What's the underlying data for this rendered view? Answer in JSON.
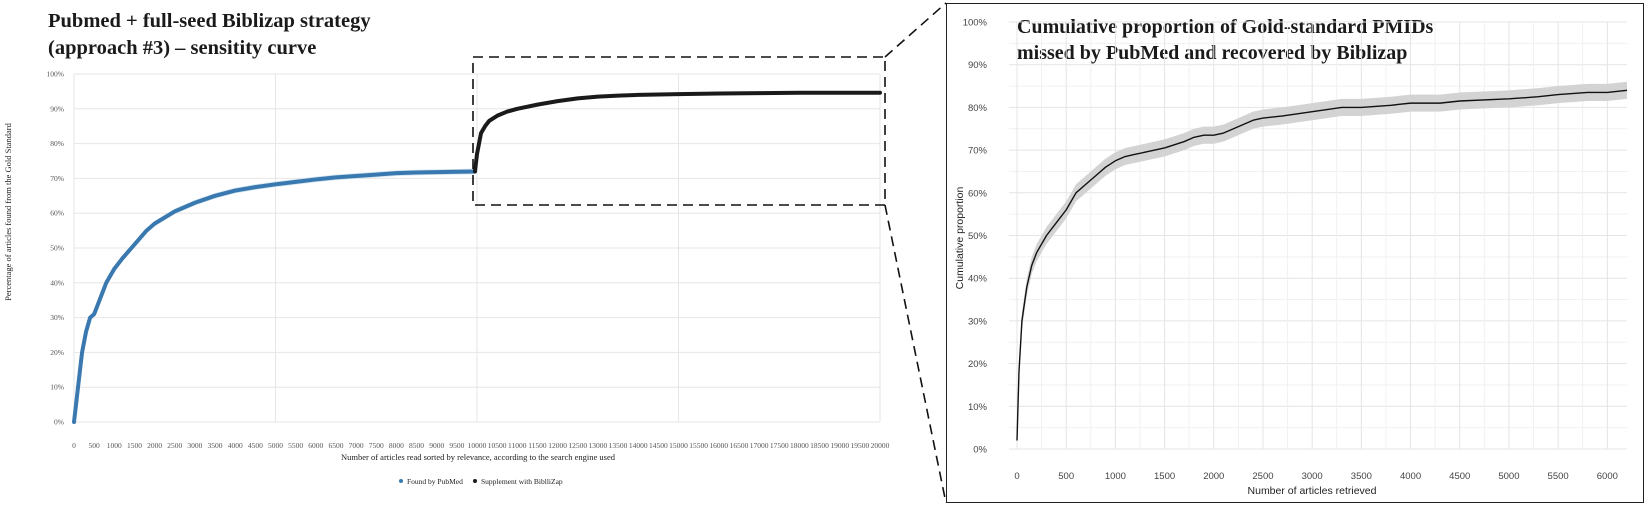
{
  "title": {
    "line1": "Pubmed + full-seed Biblizap strategy",
    "line2": "(approach #3) – sensitity curve"
  },
  "inset": {
    "title_line1": "Cumulative proportion of Gold-standard PMIDs",
    "title_line2": "missed by PubMed and recovered by Biblizap"
  },
  "colors": {
    "pubmed": "#3a78b0",
    "pubmed_band": "#cfe4f0",
    "biblizap": "#1a1a1a",
    "ci_band": "#d3d3d3",
    "grid": "#e6e6e6"
  },
  "chart_data": [
    {
      "type": "line",
      "title": "Pubmed + full-seed Biblizap strategy (approach #3) – sensitity curve",
      "xlabel": "Number of articles read sorted by relevance, according to the search engine used",
      "ylabel": "Percentage of articles found from the Gold Standard",
      "xlim": [
        0,
        20000
      ],
      "ylim": [
        0,
        1
      ],
      "x_ticks": [
        "0",
        "500",
        "1000",
        "1500",
        "2000",
        "2500",
        "3000",
        "3500",
        "4000",
        "4500",
        "5000",
        "5500",
        "6000",
        "6500",
        "7000",
        "7500",
        "8000",
        "8500",
        "9000",
        "9500",
        "10000",
        "10500",
        "11000",
        "11500",
        "12000",
        "12500",
        "13000",
        "13500",
        "14000",
        "14500",
        "15000",
        "15500",
        "16000",
        "16500",
        "17000",
        "17500",
        "18000",
        "18500",
        "19000",
        "19500",
        "20000"
      ],
      "y_ticks": [
        "0%",
        "10%",
        "20%",
        "30%",
        "40%",
        "50%",
        "60%",
        "70%",
        "80%",
        "90%",
        "100%"
      ],
      "legend": {
        "placement": "bottom",
        "entries": [
          "Found by PubMed",
          "Supplement with BiblliZap"
        ]
      },
      "grid": true,
      "series": [
        {
          "name": "Found by PubMed",
          "x": [
            0,
            50,
            100,
            200,
            300,
            400,
            500,
            600,
            700,
            800,
            1000,
            1200,
            1500,
            1800,
            2000,
            2500,
            3000,
            3500,
            4000,
            4500,
            5000,
            5500,
            6000,
            6500,
            7000,
            7500,
            8000,
            8500,
            9000,
            9500,
            9950
          ],
          "y": [
            0.0,
            0.05,
            0.1,
            0.2,
            0.26,
            0.3,
            0.31,
            0.34,
            0.37,
            0.4,
            0.44,
            0.47,
            0.51,
            0.55,
            0.57,
            0.605,
            0.63,
            0.65,
            0.665,
            0.675,
            0.683,
            0.69,
            0.697,
            0.703,
            0.707,
            0.711,
            0.715,
            0.717,
            0.718,
            0.719,
            0.72
          ]
        },
        {
          "name": "Supplement with BiblliZap",
          "x": [
            9950,
            10000,
            10050,
            10100,
            10200,
            10300,
            10500,
            10750,
            11000,
            11500,
            12000,
            12500,
            13000,
            13500,
            14000,
            15000,
            16000,
            17000,
            18000,
            19000,
            20000
          ],
          "y": [
            0.72,
            0.77,
            0.8,
            0.83,
            0.85,
            0.865,
            0.88,
            0.892,
            0.9,
            0.912,
            0.922,
            0.93,
            0.935,
            0.938,
            0.94,
            0.942,
            0.944,
            0.945,
            0.946,
            0.946,
            0.946
          ]
        }
      ]
    },
    {
      "type": "line",
      "title": "Cumulative proportion of Gold-standard PMIDs missed by PubMed and recovered by Biblizap",
      "xlabel": "Number of articles retrieved",
      "ylabel": "Cumulative proportion",
      "xlim": [
        0,
        6200
      ],
      "ylim": [
        0,
        1
      ],
      "x_ticks": [
        "0",
        "500",
        "1000",
        "1500",
        "2000",
        "2500",
        "3000",
        "3500",
        "4000",
        "4500",
        "5000",
        "5500",
        "6000"
      ],
      "y_ticks": [
        "0%",
        "10%",
        "20%",
        "30%",
        "40%",
        "50%",
        "60%",
        "70%",
        "80%",
        "90%",
        "100%"
      ],
      "grid": true,
      "series": [
        {
          "x": [
            0,
            20,
            50,
            100,
            150,
            200,
            300,
            400,
            500,
            600,
            700,
            800,
            900,
            1000,
            1100,
            1200,
            1300,
            1500,
            1700,
            1800,
            1900,
            2000,
            2100,
            2200,
            2300,
            2400,
            2500,
            2700,
            3000,
            3300,
            3500,
            3800,
            4000,
            4300,
            4500,
            5000,
            5300,
            5500,
            5800,
            6000,
            6200
          ],
          "y": [
            0.02,
            0.18,
            0.3,
            0.38,
            0.43,
            0.46,
            0.5,
            0.53,
            0.56,
            0.6,
            0.62,
            0.64,
            0.66,
            0.675,
            0.685,
            0.69,
            0.695,
            0.705,
            0.72,
            0.73,
            0.735,
            0.735,
            0.74,
            0.75,
            0.76,
            0.77,
            0.775,
            0.78,
            0.79,
            0.8,
            0.8,
            0.805,
            0.81,
            0.81,
            0.815,
            0.82,
            0.825,
            0.83,
            0.835,
            0.835,
            0.84
          ],
          "ci_lower": [
            0.02,
            0.17,
            0.28,
            0.36,
            0.41,
            0.44,
            0.48,
            0.51,
            0.54,
            0.58,
            0.6,
            0.62,
            0.64,
            0.655,
            0.665,
            0.67,
            0.675,
            0.685,
            0.7,
            0.71,
            0.715,
            0.715,
            0.72,
            0.73,
            0.74,
            0.75,
            0.755,
            0.76,
            0.77,
            0.78,
            0.78,
            0.785,
            0.79,
            0.79,
            0.795,
            0.8,
            0.805,
            0.81,
            0.815,
            0.815,
            0.82
          ],
          "ci_upper": [
            0.02,
            0.19,
            0.32,
            0.4,
            0.45,
            0.48,
            0.52,
            0.55,
            0.58,
            0.62,
            0.64,
            0.66,
            0.68,
            0.695,
            0.705,
            0.71,
            0.715,
            0.725,
            0.74,
            0.75,
            0.755,
            0.755,
            0.76,
            0.77,
            0.78,
            0.79,
            0.795,
            0.8,
            0.81,
            0.82,
            0.82,
            0.825,
            0.83,
            0.83,
            0.835,
            0.84,
            0.845,
            0.85,
            0.855,
            0.855,
            0.86
          ]
        }
      ]
    }
  ]
}
